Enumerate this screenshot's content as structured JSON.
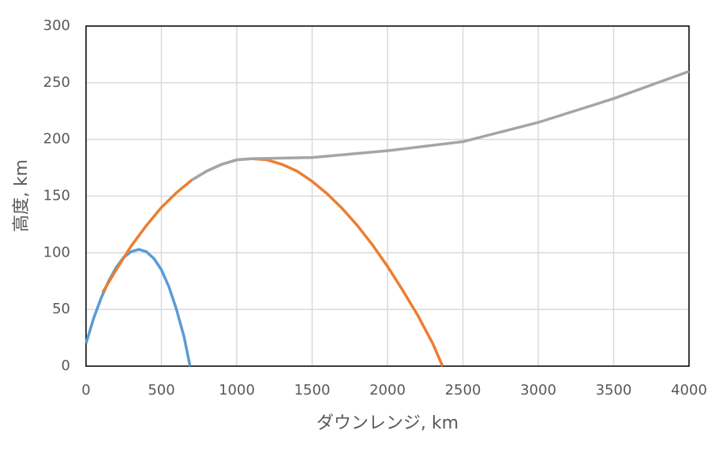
{
  "chart_data": {
    "type": "line",
    "x_label": "ダウンレンジ, km",
    "y_label": "高度, km",
    "xlim": [
      0,
      4000
    ],
    "xticks": [
      0,
      500,
      1000,
      1500,
      2000,
      2500,
      3000,
      3500,
      4000
    ],
    "ylim": [
      0,
      300
    ],
    "yticks": [
      0,
      50,
      100,
      150,
      200,
      250,
      300
    ],
    "grid": true,
    "series": [
      {
        "color": "#5b9bd5",
        "x": [
          0,
          50,
          100,
          150,
          200,
          250,
          300,
          350,
          400,
          450,
          500,
          550,
          600,
          650,
          690
        ],
        "values": [
          20,
          42,
          60,
          75,
          87,
          96,
          101,
          103,
          101,
          95,
          85,
          70,
          50,
          26,
          0
        ]
      },
      {
        "color": "#ed7d31",
        "x": [
          110,
          200,
          300,
          400,
          500,
          600,
          700,
          800,
          900,
          1000,
          1100,
          1200,
          1300,
          1400,
          1500,
          1600,
          1700,
          1800,
          1900,
          2000,
          2100,
          2200,
          2300,
          2365
        ],
        "values": [
          65,
          85,
          106,
          124,
          140,
          153,
          164,
          172,
          178,
          182,
          183,
          182,
          178,
          172,
          163,
          152,
          139,
          124,
          107,
          88,
          67,
          45,
          20,
          0
        ]
      },
      {
        "color": "#a5a5a5",
        "x": [
          700,
          800,
          900,
          1000,
          1100,
          1500,
          2000,
          2500,
          3000,
          3500,
          4000
        ],
        "values": [
          164,
          172,
          178,
          182,
          183,
          184,
          190,
          198,
          215,
          236,
          260
        ]
      }
    ]
  }
}
